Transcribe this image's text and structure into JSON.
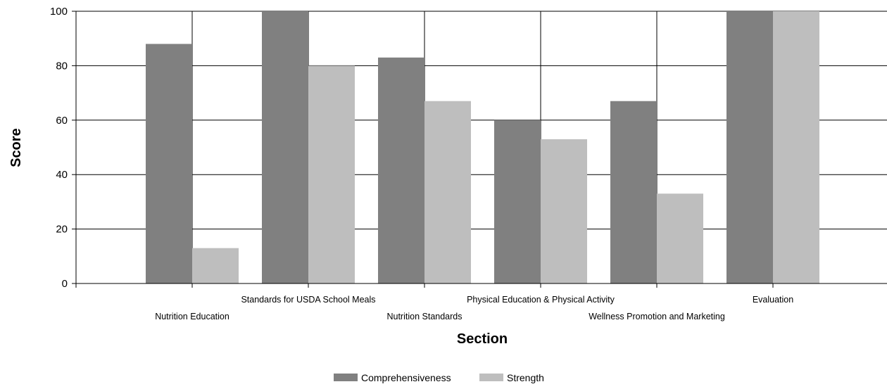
{
  "chart_data": {
    "type": "bar",
    "title": "",
    "xlabel": "Section",
    "ylabel": "Score",
    "ylim": [
      0,
      100
    ],
    "yticks": [
      0,
      20,
      40,
      60,
      80,
      100
    ],
    "grid": true,
    "legend_position": "bottom",
    "categories": [
      "Nutrition Education",
      "Standards for USDA School Meals",
      "Nutrition Standards",
      "Physical Education & Physical Activity",
      "Wellness Promotion and Marketing",
      "Evaluation"
    ],
    "series": [
      {
        "name": "Comprehensiveness",
        "color": "#808080",
        "values": [
          88,
          100,
          83,
          60,
          67,
          100
        ]
      },
      {
        "name": "Strength",
        "color": "#bebebe",
        "values": [
          13,
          80,
          67,
          53,
          33,
          100
        ]
      }
    ]
  }
}
